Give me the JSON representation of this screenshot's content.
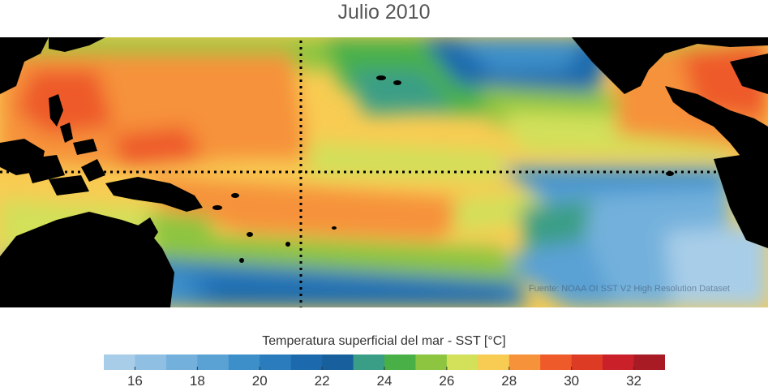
{
  "map": {
    "title": "Julio 2010",
    "source_note": "Fuente: NOAA OI SST V2 High Resolution Dataset",
    "colorbar": {
      "label": "Temperatura superficial del mar - SST  [°C]",
      "min": 15,
      "max": 33,
      "step": 1,
      "tick_labels": [
        "16",
        "18",
        "20",
        "22",
        "24",
        "26",
        "28",
        "30",
        "32"
      ],
      "tick_values": [
        16,
        18,
        20,
        22,
        24,
        26,
        28,
        30,
        32
      ],
      "colors": [
        "#a7cde8",
        "#8fc0e3",
        "#73b1dc",
        "#5aa1d4",
        "#3d8fc9",
        "#2a7cbd",
        "#1c6aad",
        "#17609d",
        "#3a9e86",
        "#49b048",
        "#8dc540",
        "#d2e05a",
        "#f8cc52",
        "#f6923a",
        "#ee5a2a",
        "#dd3b24",
        "#c9202a",
        "#a81b25"
      ]
    },
    "land_color": "#000000"
  }
}
